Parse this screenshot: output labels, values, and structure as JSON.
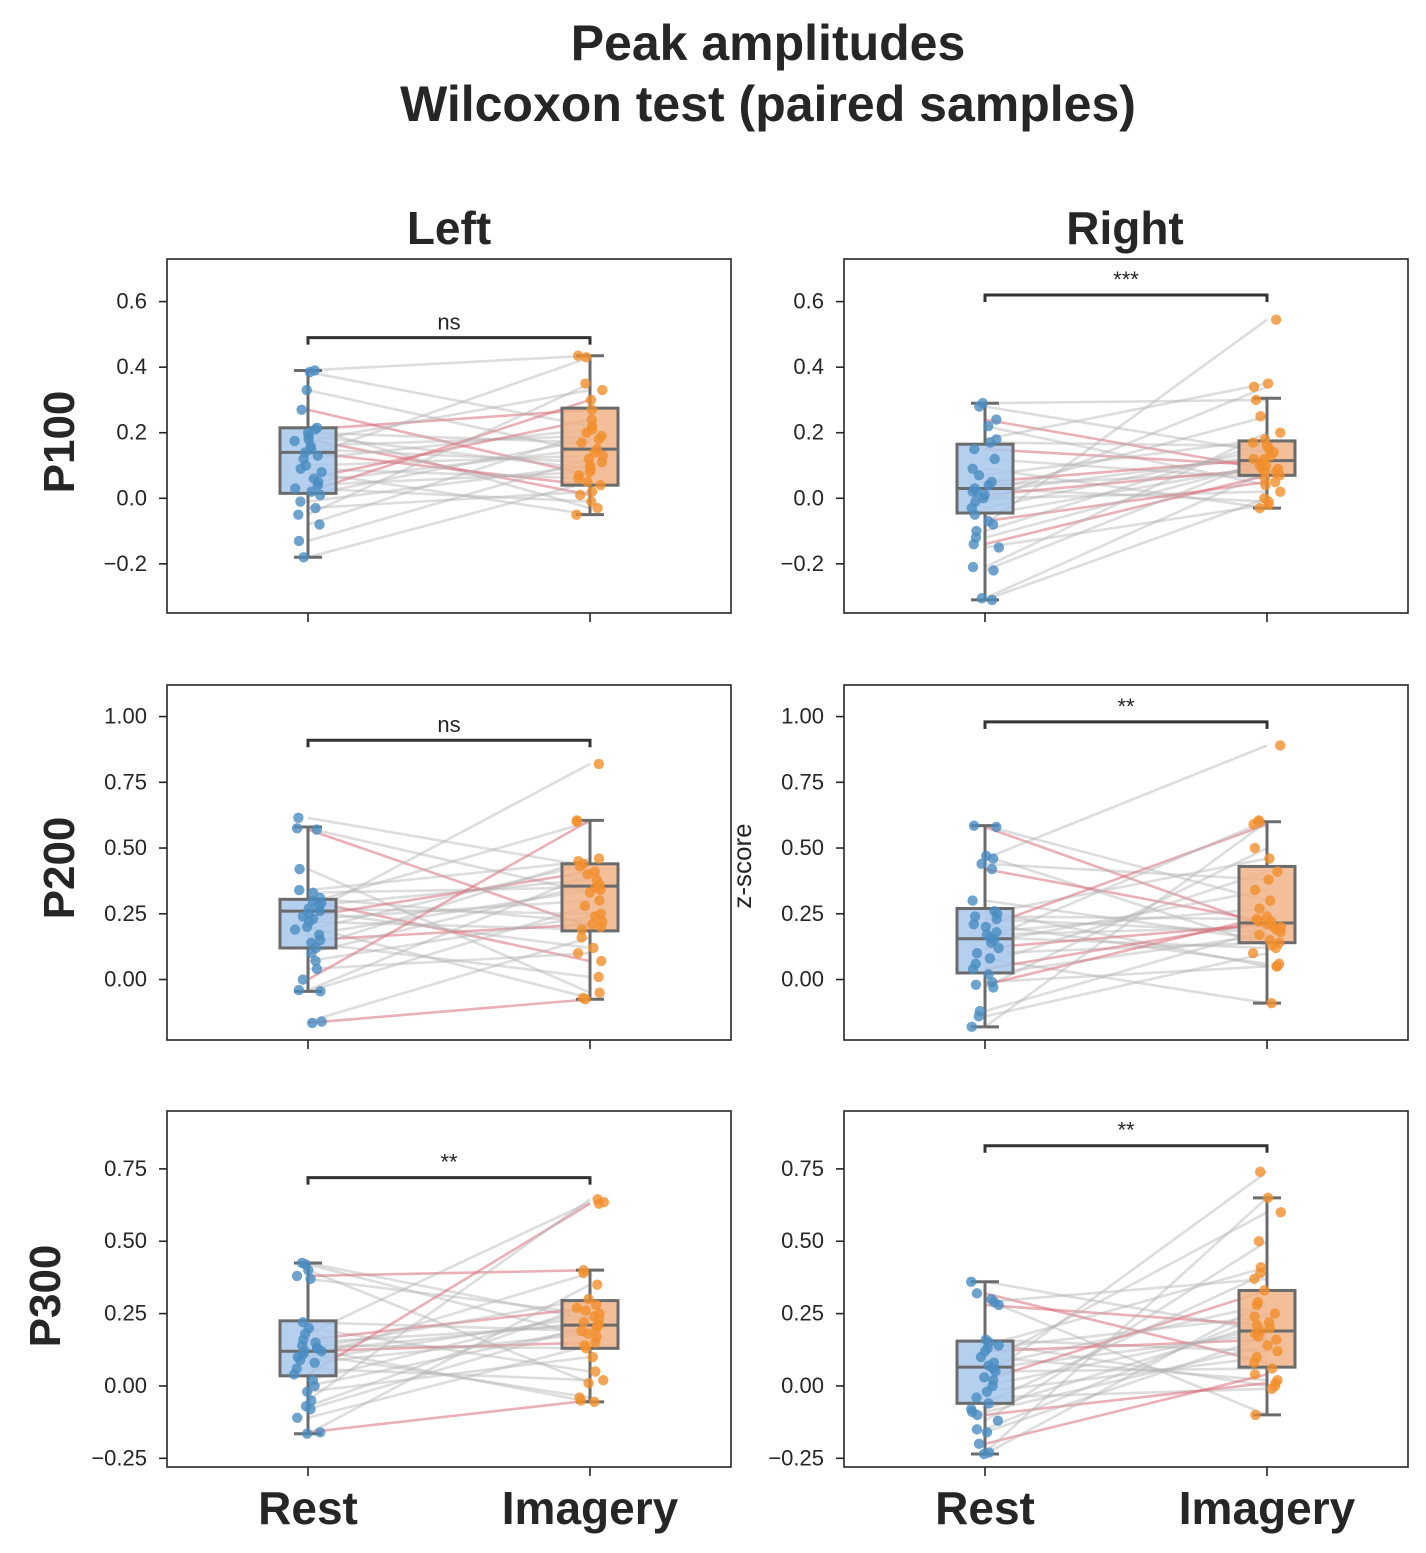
{
  "figure": {
    "title_line1": "Peak amplitudes",
    "title_line2": "Wilcoxon test (paired samples)",
    "ylabel": "z-score",
    "columns": [
      "Left",
      "Right"
    ],
    "rows": [
      "P100",
      "P200",
      "P300"
    ],
    "x_categories": [
      "Rest",
      "Imagery"
    ]
  },
  "colors": {
    "rest": "#4a8cc2",
    "imagery": "#f28f2c",
    "rest_box": "#a8c8ec",
    "imagery_box": "#f0b488",
    "box_edge": "#6b6b6b",
    "pair_line_grey": "#b4b4b4",
    "pair_line_red": "#d9707a",
    "bracket": "#333333"
  },
  "chart_data": [
    {
      "type": "box",
      "panel": "P100 Left",
      "categories": [
        "Rest",
        "Imagery"
      ],
      "ylim": [
        -0.35,
        0.73
      ],
      "yticks": [
        "0.6",
        "0.4",
        "0.2",
        "0.0",
        "−0.2"
      ],
      "yticks_values": [
        0.6,
        0.4,
        0.2,
        0.0,
        -0.2
      ],
      "significance": "ns",
      "bracket_y": 0.49,
      "boxes": [
        {
          "name": "Rest",
          "whislo": -0.18,
          "q1": 0.015,
          "med": 0.14,
          "q3": 0.215,
          "whishi": 0.39
        },
        {
          "name": "Imagery",
          "whislo": -0.05,
          "q1": 0.04,
          "med": 0.15,
          "q3": 0.275,
          "whishi": 0.435
        }
      ],
      "rest_points": [
        0.39,
        0.385,
        0.33,
        0.27,
        0.215,
        0.21,
        0.2,
        0.19,
        0.18,
        0.175,
        0.16,
        0.15,
        0.14,
        0.13,
        0.12,
        0.1,
        0.09,
        0.08,
        0.06,
        0.05,
        0.04,
        0.03,
        0.02,
        0.01,
        -0.01,
        -0.03,
        -0.05,
        -0.08,
        -0.13,
        -0.18
      ],
      "imagery_points": [
        0.435,
        0.43,
        0.35,
        0.33,
        0.3,
        0.27,
        0.24,
        0.22,
        0.21,
        0.2,
        0.19,
        0.18,
        0.17,
        0.15,
        0.14,
        0.13,
        0.12,
        0.11,
        0.1,
        0.09,
        0.08,
        0.07,
        0.06,
        0.05,
        0.04,
        0.02,
        0.01,
        -0.01,
        -0.03,
        -0.05
      ],
      "red_pairs": [
        3,
        5,
        8,
        12,
        18,
        22
      ]
    },
    {
      "type": "box",
      "panel": "P100 Right",
      "categories": [
        "Rest",
        "Imagery"
      ],
      "ylim": [
        -0.35,
        0.73
      ],
      "yticks": [
        "0.6",
        "0.4",
        "0.2",
        "0.0",
        "−0.2"
      ],
      "yticks_values": [
        0.6,
        0.4,
        0.2,
        0.0,
        -0.2
      ],
      "significance": "***",
      "bracket_y": 0.62,
      "boxes": [
        {
          "name": "Rest",
          "whislo": -0.31,
          "q1": -0.045,
          "med": 0.03,
          "q3": 0.165,
          "whishi": 0.29
        },
        {
          "name": "Imagery",
          "whislo": -0.03,
          "q1": 0.07,
          "med": 0.115,
          "q3": 0.175,
          "whishi": 0.305
        }
      ],
      "rest_points": [
        0.29,
        0.28,
        0.24,
        0.22,
        0.18,
        0.17,
        0.15,
        0.12,
        0.09,
        0.07,
        0.05,
        0.04,
        0.03,
        0.02,
        0.02,
        0.01,
        0.0,
        -0.01,
        -0.03,
        -0.05,
        -0.07,
        -0.08,
        -0.1,
        -0.12,
        -0.14,
        -0.15,
        -0.21,
        -0.22,
        -0.305,
        -0.31
      ],
      "imagery_points": [
        0.545,
        0.35,
        0.34,
        0.3,
        0.25,
        0.2,
        0.18,
        0.17,
        0.16,
        0.15,
        0.14,
        0.13,
        0.12,
        0.12,
        0.11,
        0.1,
        0.1,
        0.09,
        0.09,
        0.08,
        0.08,
        0.07,
        0.06,
        0.05,
        0.04,
        0.02,
        0.0,
        -0.01,
        -0.02,
        -0.03
      ],
      "red_pairs": [
        2,
        6,
        10,
        15,
        20,
        24
      ]
    },
    {
      "type": "box",
      "panel": "P200 Left",
      "categories": [
        "Rest",
        "Imagery"
      ],
      "ylim": [
        -0.23,
        1.12
      ],
      "yticks": [
        "1.00",
        "0.75",
        "0.50",
        "0.25",
        "0.00"
      ],
      "yticks_values": [
        1.0,
        0.75,
        0.5,
        0.25,
        0.0
      ],
      "significance": "ns",
      "bracket_y": 0.91,
      "boxes": [
        {
          "name": "Rest",
          "whislo": -0.045,
          "q1": 0.12,
          "med": 0.26,
          "q3": 0.305,
          "whishi": 0.58
        },
        {
          "name": "Imagery",
          "whislo": -0.075,
          "q1": 0.185,
          "med": 0.355,
          "q3": 0.44,
          "whishi": 0.605
        }
      ],
      "rest_points": [
        0.615,
        0.575,
        0.57,
        0.42,
        0.34,
        0.33,
        0.31,
        0.3,
        0.29,
        0.28,
        0.27,
        0.26,
        0.25,
        0.24,
        0.23,
        0.22,
        0.2,
        0.19,
        0.17,
        0.15,
        0.14,
        0.12,
        0.1,
        0.07,
        0.04,
        0.0,
        -0.04,
        -0.045,
        -0.16,
        -0.165
      ],
      "imagery_points": [
        0.82,
        0.605,
        0.6,
        0.46,
        0.45,
        0.44,
        0.43,
        0.41,
        0.4,
        0.38,
        0.36,
        0.35,
        0.34,
        0.33,
        0.3,
        0.28,
        0.25,
        0.24,
        0.22,
        0.21,
        0.2,
        0.19,
        0.16,
        0.12,
        0.1,
        0.07,
        0.01,
        -0.05,
        -0.07,
        -0.075
      ],
      "red_pairs": [
        2,
        7,
        13,
        19,
        25,
        29
      ]
    },
    {
      "type": "box",
      "panel": "P200 Right",
      "categories": [
        "Rest",
        "Imagery"
      ],
      "ylim": [
        -0.23,
        1.12
      ],
      "yticks": [
        "1.00",
        "0.75",
        "0.50",
        "0.25",
        "0.00"
      ],
      "yticks_values": [
        1.0,
        0.75,
        0.5,
        0.25,
        0.0
      ],
      "significance": "**",
      "bracket_y": 0.98,
      "boxes": [
        {
          "name": "Rest",
          "whislo": -0.18,
          "q1": 0.025,
          "med": 0.155,
          "q3": 0.27,
          "whishi": 0.585
        },
        {
          "name": "Imagery",
          "whislo": -0.09,
          "q1": 0.14,
          "med": 0.215,
          "q3": 0.43,
          "whishi": 0.6
        }
      ],
      "rest_points": [
        0.585,
        0.58,
        0.47,
        0.46,
        0.44,
        0.42,
        0.3,
        0.26,
        0.25,
        0.24,
        0.23,
        0.21,
        0.2,
        0.18,
        0.17,
        0.16,
        0.15,
        0.14,
        0.12,
        0.1,
        0.08,
        0.06,
        0.04,
        0.02,
        -0.01,
        -0.03,
        -0.02,
        -0.12,
        -0.14,
        -0.18
      ],
      "imagery_points": [
        0.89,
        0.605,
        0.6,
        0.59,
        0.5,
        0.46,
        0.41,
        0.38,
        0.34,
        0.3,
        0.27,
        0.24,
        0.23,
        0.22,
        0.22,
        0.21,
        0.2,
        0.2,
        0.19,
        0.18,
        0.17,
        0.15,
        0.14,
        0.13,
        0.12,
        0.1,
        0.06,
        0.05,
        0.05,
        -0.09
      ],
      "red_pairs": [
        1,
        5,
        12,
        18,
        22,
        26
      ]
    },
    {
      "type": "box",
      "panel": "P300 Left",
      "categories": [
        "Rest",
        "Imagery"
      ],
      "ylim": [
        -0.28,
        0.95
      ],
      "yticks": [
        "0.75",
        "0.50",
        "0.25",
        "0.00",
        "−0.25"
      ],
      "yticks_values": [
        0.75,
        0.5,
        0.25,
        0.0,
        -0.25
      ],
      "significance": "**",
      "bracket_y": 0.72,
      "boxes": [
        {
          "name": "Rest",
          "whislo": -0.165,
          "q1": 0.035,
          "med": 0.12,
          "q3": 0.225,
          "whishi": 0.425
        },
        {
          "name": "Imagery",
          "whislo": -0.055,
          "q1": 0.13,
          "med": 0.21,
          "q3": 0.295,
          "whishi": 0.4
        }
      ],
      "rest_points": [
        0.425,
        0.42,
        0.4,
        0.38,
        0.37,
        0.22,
        0.2,
        0.18,
        0.16,
        0.15,
        0.14,
        0.13,
        0.13,
        0.12,
        0.12,
        0.11,
        0.1,
        0.09,
        0.08,
        0.06,
        0.04,
        0.02,
        0.0,
        -0.02,
        -0.05,
        -0.07,
        -0.08,
        -0.11,
        -0.16,
        -0.165
      ],
      "imagery_points": [
        0.645,
        0.635,
        0.63,
        0.4,
        0.39,
        0.35,
        0.3,
        0.28,
        0.27,
        0.26,
        0.25,
        0.24,
        0.23,
        0.22,
        0.21,
        0.21,
        0.2,
        0.19,
        0.18,
        0.17,
        0.15,
        0.14,
        0.13,
        0.1,
        0.05,
        0.02,
        0.01,
        -0.04,
        -0.05,
        -0.055
      ],
      "red_pairs": [
        3,
        8,
        14,
        20,
        28
      ]
    },
    {
      "type": "box",
      "panel": "P300 Right",
      "categories": [
        "Rest",
        "Imagery"
      ],
      "ylim": [
        -0.28,
        0.95
      ],
      "yticks": [
        "0.75",
        "0.50",
        "0.25",
        "0.00",
        "−0.25"
      ],
      "yticks_values": [
        0.75,
        0.5,
        0.25,
        0.0,
        -0.25
      ],
      "significance": "**",
      "bracket_y": 0.83,
      "boxes": [
        {
          "name": "Rest",
          "whislo": -0.235,
          "q1": -0.06,
          "med": 0.065,
          "q3": 0.155,
          "whishi": 0.36
        },
        {
          "name": "Imagery",
          "whislo": -0.1,
          "q1": 0.065,
          "med": 0.19,
          "q3": 0.33,
          "whishi": 0.65
        }
      ],
      "rest_points": [
        0.36,
        0.32,
        0.3,
        0.29,
        0.28,
        0.16,
        0.15,
        0.14,
        0.13,
        0.12,
        0.1,
        0.08,
        0.07,
        0.06,
        0.05,
        0.03,
        0.02,
        0.0,
        -0.02,
        -0.04,
        -0.06,
        -0.08,
        -0.09,
        -0.1,
        -0.12,
        -0.15,
        -0.16,
        -0.2,
        -0.23,
        -0.235
      ],
      "imagery_points": [
        0.74,
        0.65,
        0.6,
        0.5,
        0.41,
        0.39,
        0.37,
        0.33,
        0.29,
        0.28,
        0.25,
        0.24,
        0.22,
        0.21,
        0.2,
        0.19,
        0.18,
        0.17,
        0.16,
        0.14,
        0.12,
        0.1,
        0.08,
        0.06,
        0.04,
        0.02,
        0.01,
        0.0,
        -0.01,
        -0.1
      ],
      "red_pairs": [
        1,
        4,
        9,
        16,
        23,
        27
      ]
    }
  ]
}
